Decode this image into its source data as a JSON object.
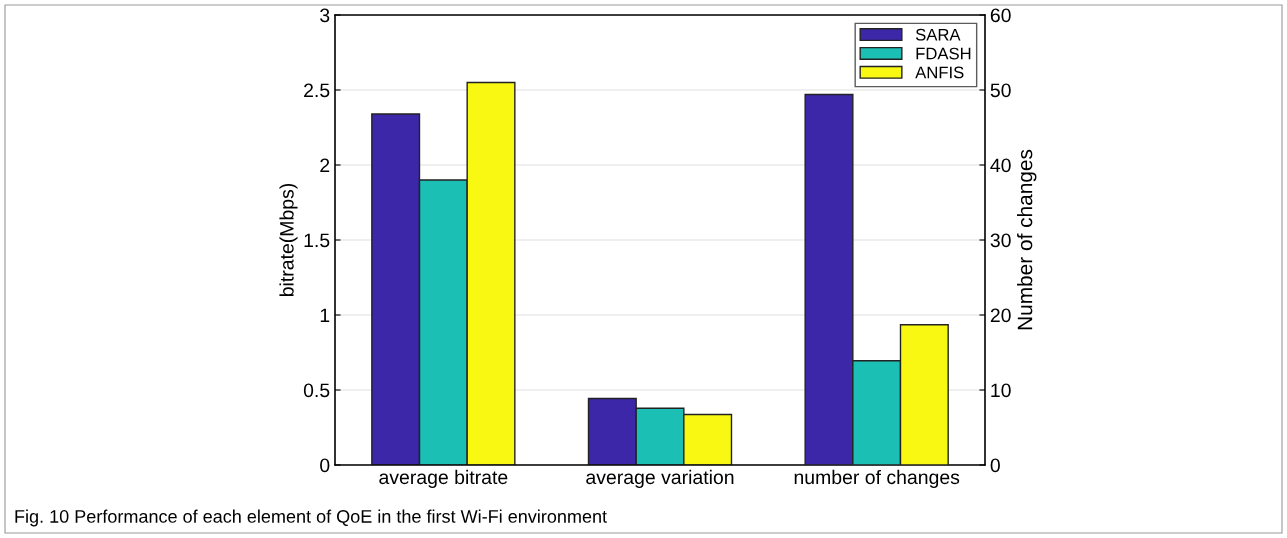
{
  "chart_data": {
    "type": "bar",
    "categories": [
      "average bitrate",
      "average variation",
      "number of changes"
    ],
    "ylabel": "bitrate(Mbps)",
    "y2label": "Number of changes",
    "ylim": [
      0,
      3
    ],
    "yticks": [
      0,
      0.5,
      1,
      1.5,
      2,
      2.5,
      3
    ],
    "y2lim": [
      0,
      60
    ],
    "y2ticks": [
      0,
      10,
      20,
      30,
      40,
      50,
      60
    ],
    "grid": "y",
    "legend": "top right",
    "series": [
      {
        "name": "SARA",
        "color": "#3c27a8",
        "values": [
          2.34,
          0.443,
          null
        ]
      },
      {
        "name": "FDASH",
        "color": "#1bbfb4",
        "values": [
          1.9,
          0.378,
          null
        ]
      },
      {
        "name": "ANFIS",
        "color": "#f8f812",
        "values": [
          2.55,
          0.337,
          null
        ]
      },
      {
        "color": "#3c27a8",
        "axis": "y2",
        "values": [
          null,
          null,
          49.4
        ]
      },
      {
        "color": "#1bbfb4",
        "axis": "y2",
        "values": [
          null,
          null,
          13.9
        ]
      },
      {
        "color": "#f8f812",
        "axis": "y2",
        "values": [
          null,
          null,
          18.7
        ]
      }
    ],
    "annotations": [
      "Fig. 10 Performance of each element of QoE in the first Wi-Fi environment"
    ]
  }
}
